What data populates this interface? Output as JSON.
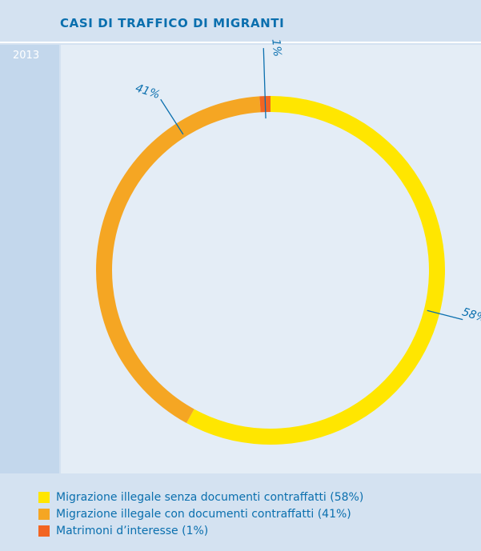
{
  "header": {
    "title": "CASI DI TRAFFICO DI MIGRANTI"
  },
  "chart_data": {
    "type": "pie",
    "title": "CASI DI TRAFFICO DI MIGRANTI",
    "subtitle": "2013",
    "categories": [
      "Migrazione illegale senza documenti contraffatti (58%)",
      "Migrazione illegale con documenti contraffatti (41%)",
      "Matrimoni d’interesse (1%)"
    ],
    "values": [
      58,
      41,
      1
    ],
    "data_labels": [
      "58%",
      "41%",
      "1%"
    ],
    "colors": [
      "#ffe600",
      "#f5a623",
      "#f26522"
    ],
    "legend_position": "bottom"
  },
  "legend": {
    "items": [
      {
        "label": "Migrazione illegale senza documenti contraffatti (58%)",
        "color": "#ffe600"
      },
      {
        "label": "Migrazione illegale con documenti contraffatti (41%)",
        "color": "#f5a623"
      },
      {
        "label": "Matrimoni d’interesse (1%)",
        "color": "#f26522"
      }
    ]
  },
  "colors": {
    "accent": "#0a6fae",
    "background": "#d4e2f1",
    "plot_background": "#e4edf6"
  }
}
